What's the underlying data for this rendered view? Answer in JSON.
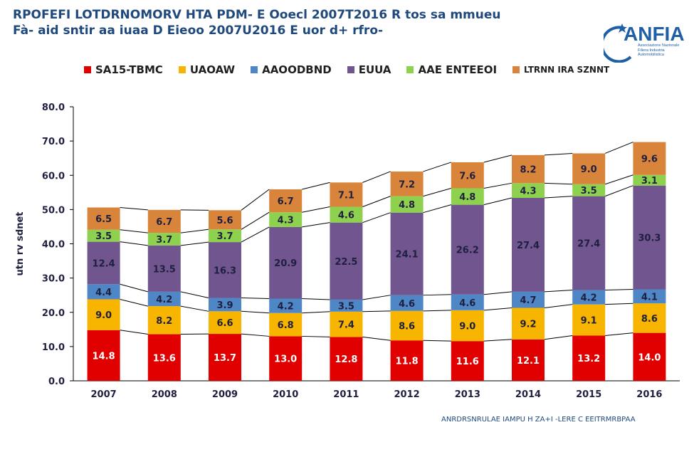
{
  "header": {
    "title": "RPOFEFI LOTDRNOMORV HTA PDM- E Ooecl 2007T2016 R tos sa mmueu",
    "subtitle": "Fà- aid sntir aa iuaa D Eieoo 2007U2016 E uor d+ rfro-"
  },
  "logo": {
    "name": "ANFIA",
    "subtitle": "Associazione Nazionale Filiera Industria Automobilistica"
  },
  "source_note": "ANRDRSNRULAE IAMPU H ZA+I -LERE C EEITRMRBPAA",
  "colors": {
    "s0": "#e00000",
    "s1": "#f7b500",
    "s2": "#4f86c6",
    "s3": "#70558e",
    "s4": "#8ed14f",
    "s5": "#d9843b"
  },
  "chart_data": {
    "type": "bar",
    "stacked": true,
    "categories": [
      "2007",
      "2008",
      "2009",
      "2010",
      "2011",
      "2012",
      "2013",
      "2014",
      "2015",
      "2016"
    ],
    "ylabel": "utn rv sdnet",
    "ylim": [
      0,
      80
    ],
    "yticks": [
      "0.0",
      "10.0",
      "20.0",
      "30.0",
      "40.0",
      "50.0",
      "60.0",
      "70.0",
      "80.0"
    ],
    "legend_position": "top",
    "series": [
      {
        "name": "SA15-TBMC",
        "color": "#e00000",
        "label_color": "#ffffff",
        "values": [
          14.8,
          13.6,
          13.7,
          13.0,
          12.8,
          11.8,
          11.6,
          12.1,
          13.2,
          14.0
        ],
        "labels": [
          "14.8",
          "13.6",
          "13.7",
          "13.0",
          "12.8",
          "11.8",
          "11.6",
          "12.1",
          "13.2",
          "14.0"
        ]
      },
      {
        "name": "UAOAW",
        "color": "#f7b500",
        "label_color": "#1f1f3f",
        "values": [
          9.0,
          8.2,
          6.6,
          6.8,
          7.4,
          8.6,
          9.0,
          9.2,
          9.1,
          8.6
        ],
        "labels": [
          "9.0",
          "8.2",
          "6.6",
          "6.8",
          "7.4",
          "8.6",
          "9.0",
          "9.2",
          "9.1",
          "8.6"
        ]
      },
      {
        "name": "AAOODBND",
        "color": "#4f86c6",
        "label_color": "#1f1f3f",
        "values": [
          4.4,
          4.2,
          3.9,
          4.2,
          3.5,
          4.6,
          4.6,
          4.7,
          4.2,
          4.1
        ],
        "labels": [
          "4.4",
          "4.2",
          "3.9",
          "4.2",
          "3.5",
          "4.6",
          "4.6",
          "4.7",
          "4.2",
          "4.1"
        ]
      },
      {
        "name": "EUUA",
        "color": "#70558e",
        "label_color": "#1f1f3f",
        "values": [
          12.4,
          13.5,
          16.3,
          20.9,
          22.5,
          24.1,
          26.2,
          27.4,
          27.4,
          30.3
        ],
        "labels": [
          "12.4",
          "13.5",
          "16.3",
          "20.9",
          "22.5",
          "24.1",
          "26.2",
          "27.4",
          "27.4",
          "30.3"
        ]
      },
      {
        "name": "AAE ENTEEOI",
        "color": "#8ed14f",
        "label_color": "#1f1f3f",
        "values": [
          3.5,
          3.7,
          3.7,
          4.3,
          4.6,
          4.8,
          4.8,
          4.3,
          3.5,
          3.1
        ],
        "labels": [
          "3.5",
          "3.7",
          "3.7",
          "4.3",
          "4.6",
          "4.8",
          "4.8",
          "4.3",
          "3.5",
          "3.1"
        ]
      },
      {
        "name": "LTRNN IRA SZNNT",
        "color": "#d9843b",
        "label_color": "#1f1f3f",
        "values": [
          6.5,
          6.7,
          5.6,
          6.7,
          7.1,
          7.2,
          7.6,
          8.2,
          9.0,
          9.6
        ],
        "labels": [
          "6.5",
          "6.7",
          "5.6",
          "6.7",
          "7.1",
          "7.2",
          "7.6",
          "8.2",
          "9.0",
          "9.6"
        ]
      }
    ]
  }
}
